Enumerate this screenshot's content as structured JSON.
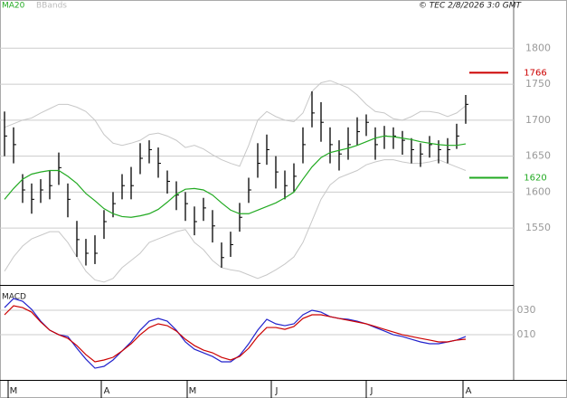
{
  "header": {
    "stamp": "© TEC 2/8/2026 3:0 GMT"
  },
  "chart_data": [
    {
      "type": "ohlc",
      "xlim": [
        -0.5,
        56.3
      ],
      "ylim": [
        1471,
        1867
      ],
      "yticks": [
        1800,
        1750,
        1700,
        1650,
        1600,
        1550
      ],
      "grid": true,
      "bar_color": "#000000",
      "high": [
        1712,
        1690,
        1625,
        1612,
        1618,
        1630,
        1655,
        1612,
        1560,
        1535,
        1540,
        1575,
        1600,
        1625,
        1635,
        1668,
        1672,
        1662,
        1630,
        1615,
        1600,
        1580,
        1592,
        1575,
        1530,
        1545,
        1585,
        1620,
        1668,
        1680,
        1650,
        1630,
        1640,
        1690,
        1740,
        1725,
        1690,
        1672,
        1690,
        1704,
        1708,
        1690,
        1692,
        1690,
        1685,
        1675,
        1668,
        1678,
        1672,
        1675,
        1695,
        1735
      ],
      "low": [
        1650,
        1640,
        1585,
        1570,
        1585,
        1590,
        1610,
        1565,
        1510,
        1498,
        1500,
        1535,
        1565,
        1590,
        1590,
        1625,
        1640,
        1620,
        1598,
        1575,
        1560,
        1540,
        1560,
        1530,
        1495,
        1510,
        1545,
        1585,
        1620,
        1638,
        1605,
        1590,
        1600,
        1640,
        1690,
        1670,
        1640,
        1630,
        1645,
        1665,
        1678,
        1645,
        1660,
        1660,
        1652,
        1640,
        1635,
        1648,
        1640,
        1640,
        1660,
        1695
      ],
      "close": [
        1678,
        1666,
        1603,
        1590,
        1603,
        1609,
        1634,
        1590,
        1534,
        1515,
        1515,
        1559,
        1584,
        1609,
        1609,
        1647,
        1659,
        1640,
        1615,
        1596,
        1584,
        1559,
        1578,
        1553,
        1509,
        1527,
        1565,
        1603,
        1640,
        1659,
        1628,
        1609,
        1622,
        1666,
        1710,
        1697,
        1666,
        1653,
        1666,
        1684,
        1697,
        1666,
        1678,
        1678,
        1672,
        1659,
        1653,
        1666,
        1659,
        1659,
        1678,
        1722
      ],
      "series": [
        {
          "name": "MA20",
          "color": "#22aa22",
          "values": [
            1590,
            1605,
            1618,
            1625,
            1628,
            1630,
            1630,
            1622,
            1612,
            1598,
            1588,
            1577,
            1570,
            1566,
            1565,
            1567,
            1570,
            1576,
            1586,
            1597,
            1604,
            1605,
            1603,
            1596,
            1585,
            1575,
            1570,
            1570,
            1575,
            1580,
            1585,
            1592,
            1600,
            1618,
            1635,
            1648,
            1655,
            1658,
            1661,
            1665,
            1670,
            1675,
            1678,
            1677,
            1675,
            1673,
            1670,
            1668,
            1666,
            1665,
            1665,
            1667
          ]
        }
      ],
      "bands": {
        "name": "BBands",
        "color": "#c8c8c8",
        "upper": [
          1690,
          1695,
          1700,
          1703,
          1710,
          1716,
          1722,
          1722,
          1718,
          1712,
          1700,
          1680,
          1668,
          1665,
          1668,
          1672,
          1680,
          1682,
          1678,
          1672,
          1662,
          1665,
          1660,
          1652,
          1645,
          1640,
          1636,
          1665,
          1700,
          1712,
          1705,
          1700,
          1698,
          1710,
          1740,
          1752,
          1755,
          1750,
          1745,
          1735,
          1722,
          1712,
          1710,
          1702,
          1700,
          1705,
          1712,
          1712,
          1710,
          1705,
          1710,
          1720
        ],
        "lower": [
          1490,
          1510,
          1525,
          1535,
          1540,
          1545,
          1545,
          1530,
          1510,
          1490,
          1478,
          1475,
          1480,
          1495,
          1505,
          1515,
          1530,
          1535,
          1540,
          1545,
          1548,
          1530,
          1520,
          1505,
          1495,
          1492,
          1490,
          1485,
          1480,
          1485,
          1492,
          1500,
          1510,
          1530,
          1560,
          1590,
          1610,
          1620,
          1625,
          1630,
          1638,
          1642,
          1645,
          1645,
          1642,
          1640,
          1640,
          1642,
          1645,
          1640,
          1635,
          1630
        ]
      },
      "levels": [
        {
          "value": 1766,
          "color": "#cc0000"
        },
        {
          "value": 1620,
          "color": "#22aa22"
        }
      ]
    },
    {
      "type": "line",
      "title": "MACD",
      "xlim": [
        -0.5,
        56.3
      ],
      "ylim": [
        -27,
        50
      ],
      "yticks": [
        {
          "value": 30,
          "label": "030"
        },
        {
          "value": 10,
          "label": "010"
        }
      ],
      "grid": true,
      "series": [
        {
          "color": "#2222cc",
          "values": [
            32.2,
            39.6,
            37.4,
            30.7,
            21.1,
            13.7,
            10,
            8.5,
            -1.1,
            -10,
            -17.4,
            -15.9,
            -10.7,
            -3.3,
            4.1,
            13.7,
            21.1,
            23.3,
            21.1,
            13.7,
            4.1,
            -1.9,
            -4.8,
            -7.8,
            -12.2,
            -12.2,
            -7,
            2.6,
            13.7,
            22.6,
            18.9,
            17.4,
            18.9,
            26.3,
            30,
            28.5,
            24.8,
            23.3,
            22.6,
            21.1,
            18.9,
            15.9,
            13,
            10,
            8.5,
            6.3,
            4.1,
            2.6,
            2.6,
            4.1,
            5.6,
            8.5
          ]
        },
        {
          "color": "#cc0000",
          "values": [
            26.3,
            33.7,
            32.2,
            28.5,
            20.4,
            13.7,
            10,
            7,
            1.1,
            -6.3,
            -12.2,
            -10.7,
            -8.5,
            -3.3,
            2.6,
            10,
            15.9,
            18.9,
            17.4,
            13,
            6.3,
            1.1,
            -2.6,
            -4.8,
            -8.5,
            -10.7,
            -7.8,
            -1.1,
            8.5,
            15.9,
            15.9,
            14.4,
            16.7,
            23.3,
            26.3,
            26.3,
            24.8,
            23.3,
            21.8,
            20.4,
            18.9,
            16.7,
            14.4,
            12.2,
            10,
            8.5,
            7,
            5.6,
            4.1,
            4.1,
            5.6,
            6.3
          ]
        }
      ],
      "xticks": [
        {
          "value": 1,
          "label": "M"
        },
        {
          "value": 11.3,
          "label": "A"
        },
        {
          "value": 20.8,
          "label": "M"
        },
        {
          "value": 30.1,
          "label": "J"
        },
        {
          "value": 40.6,
          "label": "J"
        },
        {
          "value": 51.3,
          "label": "A"
        }
      ]
    }
  ]
}
